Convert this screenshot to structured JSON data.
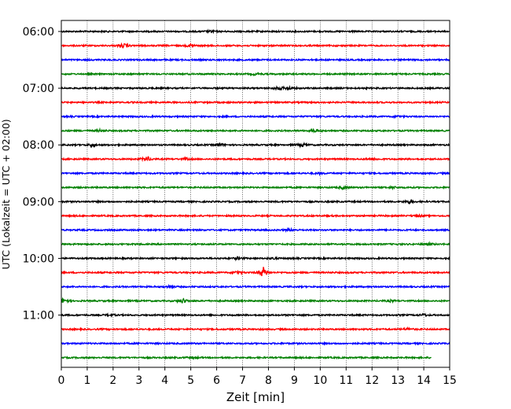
{
  "chart_data": {
    "type": "line",
    "title": "",
    "xlabel": "Zeit  [min]",
    "ylabel": "UTC (Lokalzeit = UTC + 02:00)",
    "xlim": [
      0,
      15
    ],
    "x_ticks": [
      "0",
      "1",
      "2",
      "3",
      "4",
      "5",
      "6",
      "7",
      "8",
      "9",
      "10",
      "11",
      "12",
      "13",
      "14",
      "15"
    ],
    "y_ticks": [
      {
        "label": "06:00",
        "row": 0
      },
      {
        "label": "07:00",
        "row": 4
      },
      {
        "label": "08:00",
        "row": 8
      },
      {
        "label": "09:00",
        "row": 12
      },
      {
        "label": "10:00",
        "row": 16
      },
      {
        "label": "11:00",
        "row": 20
      }
    ],
    "grid": "vertical dotted",
    "row_colors": [
      "#000000",
      "#ff0000",
      "#0000ff",
      "#008000"
    ],
    "traces": [
      {
        "start": "06:00",
        "end_min": 15,
        "events": [
          {
            "t": 5.8,
            "a": 1.2
          }
        ]
      },
      {
        "start": "06:15",
        "end_min": 15,
        "events": [
          {
            "t": 2.4,
            "a": 2.5
          },
          {
            "t": 5.0,
            "a": 1.8
          }
        ]
      },
      {
        "start": "06:30",
        "end_min": 15,
        "events": []
      },
      {
        "start": "06:45",
        "end_min": 15,
        "events": [
          {
            "t": 7.5,
            "a": 1.2
          }
        ]
      },
      {
        "start": "07:00",
        "end_min": 15,
        "events": [
          {
            "t": 8.4,
            "a": 2.2
          },
          {
            "t": 8.8,
            "a": 1.8
          }
        ]
      },
      {
        "start": "07:15",
        "end_min": 15,
        "events": []
      },
      {
        "start": "07:30",
        "end_min": 15,
        "events": [
          {
            "t": 13.0,
            "a": 1.2
          }
        ]
      },
      {
        "start": "07:45",
        "end_min": 15,
        "events": [
          {
            "t": 1.5,
            "a": 1.3
          },
          {
            "t": 9.8,
            "a": 2.0
          }
        ]
      },
      {
        "start": "08:00",
        "end_min": 15,
        "events": [
          {
            "t": 1.2,
            "a": 2.0
          },
          {
            "t": 6.1,
            "a": 2.5
          },
          {
            "t": 9.3,
            "a": 2.5
          }
        ]
      },
      {
        "start": "08:15",
        "end_min": 15,
        "events": [
          {
            "t": 3.3,
            "a": 3.5
          },
          {
            "t": 4.8,
            "a": 1.3
          },
          {
            "t": 12.0,
            "a": 1.5
          }
        ]
      },
      {
        "start": "08:30",
        "end_min": 15,
        "events": [
          {
            "t": 10.0,
            "a": 1.1
          }
        ]
      },
      {
        "start": "08:45",
        "end_min": 15,
        "events": [
          {
            "t": 10.9,
            "a": 1.8
          },
          {
            "t": 12.8,
            "a": 1.2
          }
        ]
      },
      {
        "start": "09:00",
        "end_min": 15,
        "events": [
          {
            "t": 13.4,
            "a": 2.0
          }
        ]
      },
      {
        "start": "09:15",
        "end_min": 15,
        "events": [
          {
            "t": 13.8,
            "a": 1.5
          }
        ]
      },
      {
        "start": "09:30",
        "end_min": 15,
        "events": [
          {
            "t": 8.8,
            "a": 1.2
          }
        ]
      },
      {
        "start": "09:45",
        "end_min": 15,
        "events": [
          {
            "t": 14.2,
            "a": 1.5
          }
        ]
      },
      {
        "start": "10:00",
        "end_min": 15,
        "events": [
          {
            "t": 6.8,
            "a": 1.5
          },
          {
            "t": 8.2,
            "a": 1.2
          }
        ]
      },
      {
        "start": "10:15",
        "end_min": 15,
        "events": [
          {
            "t": 7.8,
            "a": 6.5
          },
          {
            "t": 6.8,
            "a": 2.0
          }
        ]
      },
      {
        "start": "10:30",
        "end_min": 15,
        "events": [
          {
            "t": 4.2,
            "a": 1.6
          }
        ]
      },
      {
        "start": "10:45",
        "end_min": 15,
        "events": [
          {
            "t": 0.1,
            "a": 3.5
          },
          {
            "t": 4.7,
            "a": 3.0
          },
          {
            "t": 12.7,
            "a": 1.2
          }
        ]
      },
      {
        "start": "11:00",
        "end_min": 15,
        "events": [
          {
            "t": 1.9,
            "a": 1.3
          },
          {
            "t": 14.0,
            "a": 1.2
          }
        ]
      },
      {
        "start": "11:15",
        "end_min": 15,
        "events": [
          {
            "t": 13.4,
            "a": 1.6
          }
        ]
      },
      {
        "start": "11:30",
        "end_min": 15,
        "events": []
      },
      {
        "start": "11:45",
        "end_min": 14.3,
        "events": [
          {
            "t": 5.1,
            "a": 1.2
          }
        ]
      }
    ]
  }
}
